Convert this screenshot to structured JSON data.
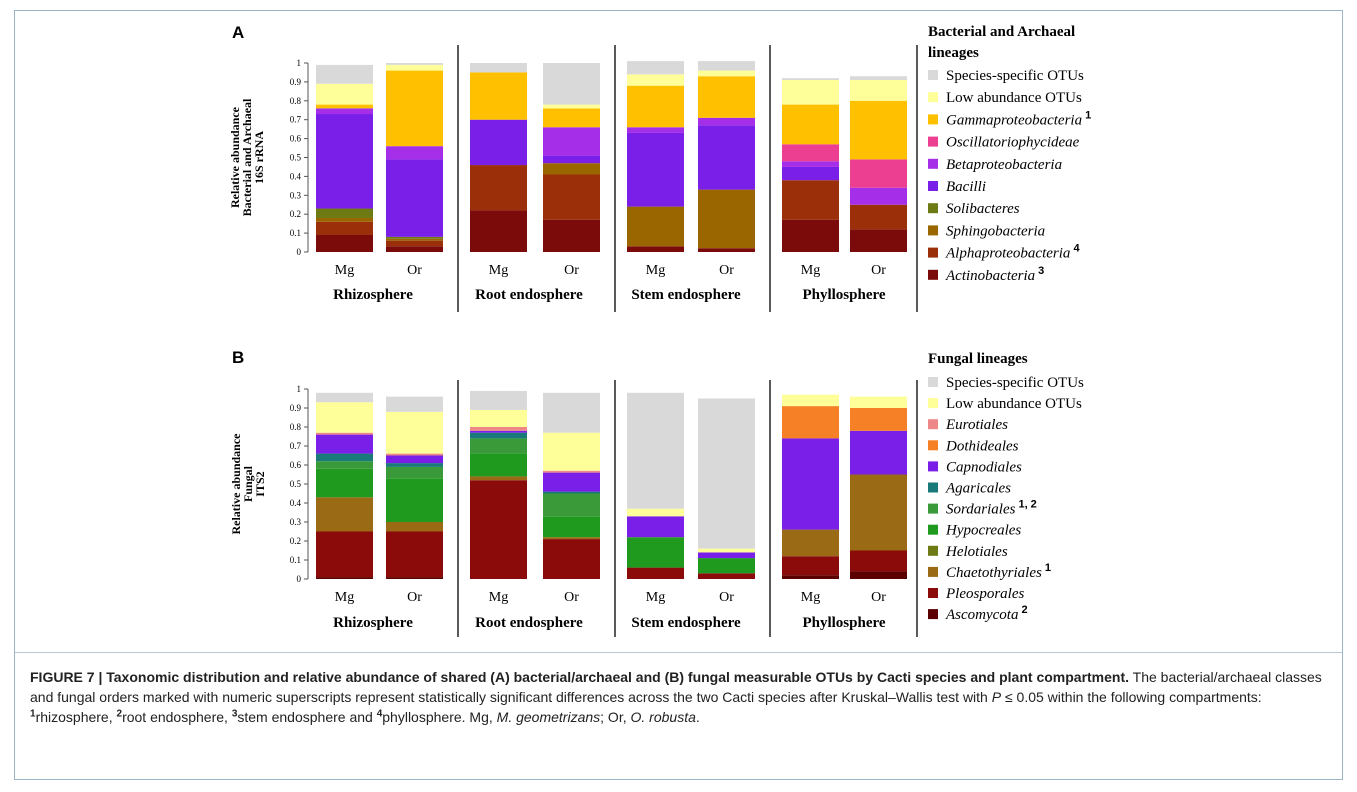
{
  "chart_data": [
    {
      "panel": "A",
      "type": "bar",
      "ylabel": [
        "16S rRNA",
        "Bacterial and Archaeal",
        "Relative abundance"
      ],
      "yticks": [
        "0",
        "0.1",
        "0.2",
        "0.3",
        "0.4",
        "0.5",
        "0.6",
        "0.7",
        "0.8",
        "0.9",
        "1"
      ],
      "ylim": [
        0,
        1
      ],
      "legend_title": [
        "Bacterial and Archaeal",
        "lineages"
      ],
      "legend_placement": "right",
      "groups": [
        {
          "name": "Rhizosphere",
          "bars": [
            "Mg",
            "Or"
          ]
        },
        {
          "name": "Root endosphere",
          "bars": [
            "Mg",
            "Or"
          ]
        },
        {
          "name": "Stem endosphere",
          "bars": [
            "Mg",
            "Or"
          ]
        },
        {
          "name": "Phyllosphere",
          "bars": [
            "Mg",
            "Or"
          ]
        }
      ],
      "categories": [
        "Rhizosphere Mg",
        "Rhizosphere Or",
        "Root endosphere Mg",
        "Root endosphere Or",
        "Stem endosphere Mg",
        "Stem endosphere Or",
        "Phyllosphere Mg",
        "Phyllosphere Or"
      ],
      "series": [
        {
          "name": "Actinobacteria",
          "sup": "3",
          "italic": true,
          "color": "#7b0a0a",
          "values": [
            0.09,
            0.03,
            0.22,
            0.17,
            0.03,
            0.02,
            0.17,
            0.12
          ]
        },
        {
          "name": "Alphaproteobacteria",
          "sup": "4",
          "italic": true,
          "color": "#9a2f0a",
          "values": [
            0.07,
            0.03,
            0.24,
            0.24,
            0.0,
            0.0,
            0.21,
            0.13
          ]
        },
        {
          "name": "Sphingobacteria",
          "sup": "",
          "italic": true,
          "color": "#996600",
          "values": [
            0.02,
            0.01,
            0.0,
            0.06,
            0.21,
            0.31,
            0.0,
            0.0
          ]
        },
        {
          "name": "Solibacteres",
          "sup": "",
          "italic": true,
          "color": "#6e7a14",
          "values": [
            0.05,
            0.01,
            0.0,
            0.0,
            0.0,
            0.0,
            0.0,
            0.0
          ]
        },
        {
          "name": "Bacilli",
          "sup": "",
          "italic": true,
          "color": "#7a1fe8",
          "values": [
            0.5,
            0.41,
            0.24,
            0.04,
            0.39,
            0.34,
            0.07,
            0.0
          ]
        },
        {
          "name": "Betaproteobacteria",
          "sup": "",
          "italic": true,
          "color": "#a52fe8",
          "values": [
            0.03,
            0.07,
            0.0,
            0.15,
            0.03,
            0.04,
            0.03,
            0.09
          ]
        },
        {
          "name": "Oscillatoriophycideae",
          "sup": "",
          "italic": true,
          "color": "#ec3f92",
          "values": [
            0.0,
            0.0,
            0.0,
            0.0,
            0.0,
            0.0,
            0.09,
            0.15
          ]
        },
        {
          "name": "Gammaproteobacteria",
          "sup": "1",
          "italic": true,
          "color": "#ffc000",
          "values": [
            0.02,
            0.4,
            0.25,
            0.1,
            0.22,
            0.22,
            0.21,
            0.31
          ]
        },
        {
          "name": "Low abundance OTUs",
          "sup": "",
          "italic": false,
          "color": "#ffff99",
          "values": [
            0.11,
            0.03,
            0.0,
            0.02,
            0.06,
            0.03,
            0.13,
            0.11
          ]
        },
        {
          "name": "Species-specific OTUs",
          "sup": "",
          "italic": false,
          "color": "#d9d9d9",
          "values": [
            0.1,
            0.01,
            0.05,
            0.22,
            0.07,
            0.05,
            0.01,
            0.02
          ]
        }
      ]
    },
    {
      "panel": "B",
      "type": "bar",
      "ylabel": [
        "ITS2",
        "Fungal",
        "Relative abundance"
      ],
      "yticks": [
        "0",
        "0.1",
        "0.2",
        "0.3",
        "0.4",
        "0.5",
        "0.6",
        "0.7",
        "0.8",
        "0.9",
        "1"
      ],
      "ylim": [
        0,
        1
      ],
      "legend_title": [
        "Fungal lineages"
      ],
      "legend_placement": "right",
      "groups": [
        {
          "name": "Rhizosphere",
          "bars": [
            "Mg",
            "Or"
          ]
        },
        {
          "name": "Root endosphere",
          "bars": [
            "Mg",
            "Or"
          ]
        },
        {
          "name": "Stem endosphere",
          "bars": [
            "Mg",
            "Or"
          ]
        },
        {
          "name": "Phyllosphere",
          "bars": [
            "Mg",
            "Or"
          ]
        }
      ],
      "categories": [
        "Rhizosphere Mg",
        "Rhizosphere Or",
        "Root endosphere Mg",
        "Root endosphere Or",
        "Stem endosphere Mg",
        "Stem endosphere Or",
        "Phyllosphere Mg",
        "Phyllosphere Or"
      ],
      "series": [
        {
          "name": "Ascomycota",
          "sup": "2",
          "italic": true,
          "color": "#5a0000",
          "values": [
            0.01,
            0.01,
            0.0,
            0.0,
            0.0,
            0.0,
            0.02,
            0.04
          ]
        },
        {
          "name": "Pleosporales",
          "sup": "",
          "italic": true,
          "color": "#8b0a0a",
          "values": [
            0.24,
            0.24,
            0.52,
            0.21,
            0.06,
            0.03,
            0.1,
            0.11
          ]
        },
        {
          "name": "Chaetothyriales",
          "sup": "1",
          "italic": true,
          "color": "#9a6a14",
          "values": [
            0.18,
            0.05,
            0.02,
            0.01,
            0.0,
            0.0,
            0.14,
            0.4
          ]
        },
        {
          "name": "Helotiales",
          "sup": "",
          "italic": true,
          "color": "#6e7a14",
          "values": [
            0.0,
            0.0,
            0.0,
            0.0,
            0.0,
            0.0,
            0.0,
            0.0
          ]
        },
        {
          "name": "Hypocreales",
          "sup": "",
          "italic": true,
          "color": "#1f9a1f",
          "values": [
            0.15,
            0.23,
            0.12,
            0.11,
            0.16,
            0.08,
            0.0,
            0.0
          ]
        },
        {
          "name": "Sordariales",
          "sup": "1, 2",
          "italic": true,
          "color": "#3a9a3a",
          "values": [
            0.04,
            0.06,
            0.08,
            0.12,
            0.0,
            0.0,
            0.0,
            0.0
          ]
        },
        {
          "name": "Agaricales",
          "sup": "",
          "italic": true,
          "color": "#1a7a7a",
          "values": [
            0.04,
            0.02,
            0.03,
            0.01,
            0.0,
            0.0,
            0.0,
            0.0
          ]
        },
        {
          "name": "Capnodiales",
          "sup": "",
          "italic": true,
          "color": "#7a1fe8",
          "values": [
            0.1,
            0.04,
            0.01,
            0.1,
            0.11,
            0.03,
            0.48,
            0.23
          ]
        },
        {
          "name": "Dothideales",
          "sup": "",
          "italic": true,
          "color": "#f58025",
          "values": [
            0.0,
            0.0,
            0.0,
            0.0,
            0.0,
            0.0,
            0.17,
            0.12
          ]
        },
        {
          "name": "Eurotiales",
          "sup": "",
          "italic": true,
          "color": "#ee8888",
          "values": [
            0.01,
            0.01,
            0.02,
            0.01,
            0.0,
            0.0,
            0.0,
            0.0
          ]
        },
        {
          "name": "Low abundance OTUs",
          "sup": "",
          "italic": false,
          "color": "#ffff99",
          "values": [
            0.16,
            0.22,
            0.09,
            0.2,
            0.04,
            0.02,
            0.06,
            0.06
          ]
        },
        {
          "name": "Species-specific OTUs",
          "sup": "",
          "italic": false,
          "color": "#d9d9d9",
          "values": [
            0.05,
            0.08,
            0.1,
            0.21,
            0.61,
            0.79,
            0.0,
            0.0
          ]
        }
      ]
    }
  ],
  "caption": {
    "lead": "FIGURE 7 | Taxonomic distribution and relative abundance of shared (A) bacterial/archaeal and (B) fungal measurable OTUs by Cacti species and plant compartment.",
    "body1": "The bacterial/archaeal classes and fungal orders marked with numeric superscripts represent statistically significant differences across the two Cacti species after Kruskal–Wallis test with ",
    "p_symbol": "P",
    "body2": " ≤ 0.05 within the following compartments: ",
    "sup1": "1",
    "c1": "rhizosphere, ",
    "sup2": "2",
    "c2": "root endosphere, ",
    "sup3": "3",
    "c3": "stem endosphere and ",
    "sup4": "4",
    "c4": "phyllosphere. Mg, ",
    "mg": "M. geometrizans",
    "sep": "; Or, ",
    "or": "O. robusta",
    "end": "."
  }
}
